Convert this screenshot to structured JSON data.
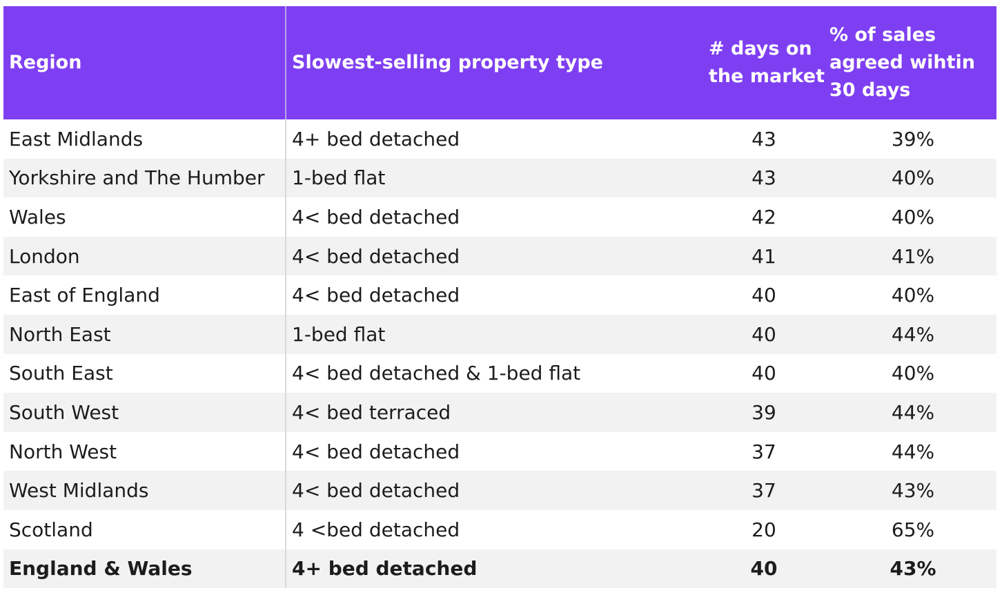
{
  "header": {
    "region": "Region",
    "type": "Slowest-selling property type",
    "days_line1": "# days on",
    "days_line2": "the market",
    "pct_line1": "% of sales",
    "pct_line2": "agreed wihtin",
    "pct_line3": "30 days"
  },
  "rows": [
    {
      "region": "East Midlands",
      "type": "4+ bed detached",
      "days": "43",
      "pct": "39%"
    },
    {
      "region": "Yorkshire and The Humber",
      "type": "1-bed flat",
      "days": "43",
      "pct": "40%"
    },
    {
      "region": "Wales",
      "type": "4< bed detached",
      "days": "42",
      "pct": "40%"
    },
    {
      "region": "London",
      "type": "4< bed detached",
      "days": "41",
      "pct": "41%"
    },
    {
      "region": "East of England",
      "type": "4< bed detached",
      "days": "40",
      "pct": "40%"
    },
    {
      "region": "North East",
      "type": "1-bed flat",
      "days": "40",
      "pct": "44%"
    },
    {
      "region": "South East",
      "type": "4< bed detached & 1-bed flat",
      "days": "40",
      "pct": "40%"
    },
    {
      "region": "South West",
      "type": "4< bed terraced",
      "days": "39",
      "pct": "44%"
    },
    {
      "region": "North West",
      "type": "4< bed detached",
      "days": "37",
      "pct": "44%"
    },
    {
      "region": "West Midlands",
      "type": "4< bed detached",
      "days": "37",
      "pct": "43%"
    },
    {
      "region": "Scotland",
      "type": "4 <bed detached",
      "days": "20",
      "pct": "65%"
    },
    {
      "region": "England & Wales",
      "type": "4+ bed detached",
      "days": "40",
      "pct": "43%"
    }
  ],
  "colors": {
    "header_bg": "#7e3ff2",
    "header_text": "#ffffff",
    "stripe": "#f2f2f2"
  }
}
